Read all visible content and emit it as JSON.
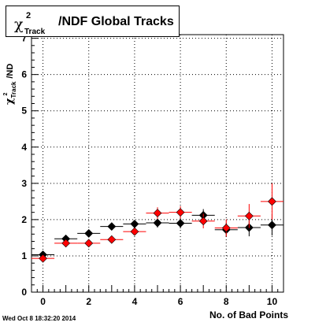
{
  "title": {
    "chi": "χ",
    "sup": "2",
    "sub": "Track",
    "main": "/NDF  Global Tracks"
  },
  "timestamp": "Wed Oct  8 18:32:20 2014",
  "chart_data": {
    "type": "scatter",
    "xlabel": "No. of Bad Points",
    "ylabel_parts": {
      "chi": "χ",
      "sup": "2",
      "sub": "Track",
      "rest": "/ND"
    },
    "xlim": [
      -0.5,
      10.5
    ],
    "ylim": [
      0,
      7.1
    ],
    "xticks": [
      0,
      2,
      4,
      6,
      8,
      10
    ],
    "yticks": [
      0,
      1,
      2,
      3,
      4,
      5,
      6,
      7
    ],
    "grid": true,
    "series": [
      {
        "color": "#000000",
        "x": [
          0,
          1,
          2,
          3,
          4,
          5,
          6,
          7,
          8,
          9,
          10
        ],
        "y": [
          1.03,
          1.47,
          1.62,
          1.81,
          1.88,
          1.91,
          1.9,
          2.12,
          1.72,
          1.78,
          1.85
        ],
        "yerr": [
          0.04,
          0.05,
          0.06,
          0.08,
          0.09,
          0.13,
          0.14,
          0.17,
          0.2,
          0.24,
          0.29
        ],
        "xerr": 0.5
      },
      {
        "color": "#ff0000",
        "x": [
          0,
          1,
          2,
          3,
          4,
          5,
          6,
          7,
          8,
          9,
          10
        ],
        "y": [
          0.93,
          1.35,
          1.35,
          1.45,
          1.67,
          2.18,
          2.2,
          1.96,
          1.77,
          2.1,
          2.5
        ],
        "yerr": [
          0.04,
          0.05,
          0.06,
          0.07,
          0.1,
          0.16,
          0.17,
          0.2,
          0.24,
          0.33,
          0.5
        ],
        "xerr": 0.5
      }
    ]
  }
}
